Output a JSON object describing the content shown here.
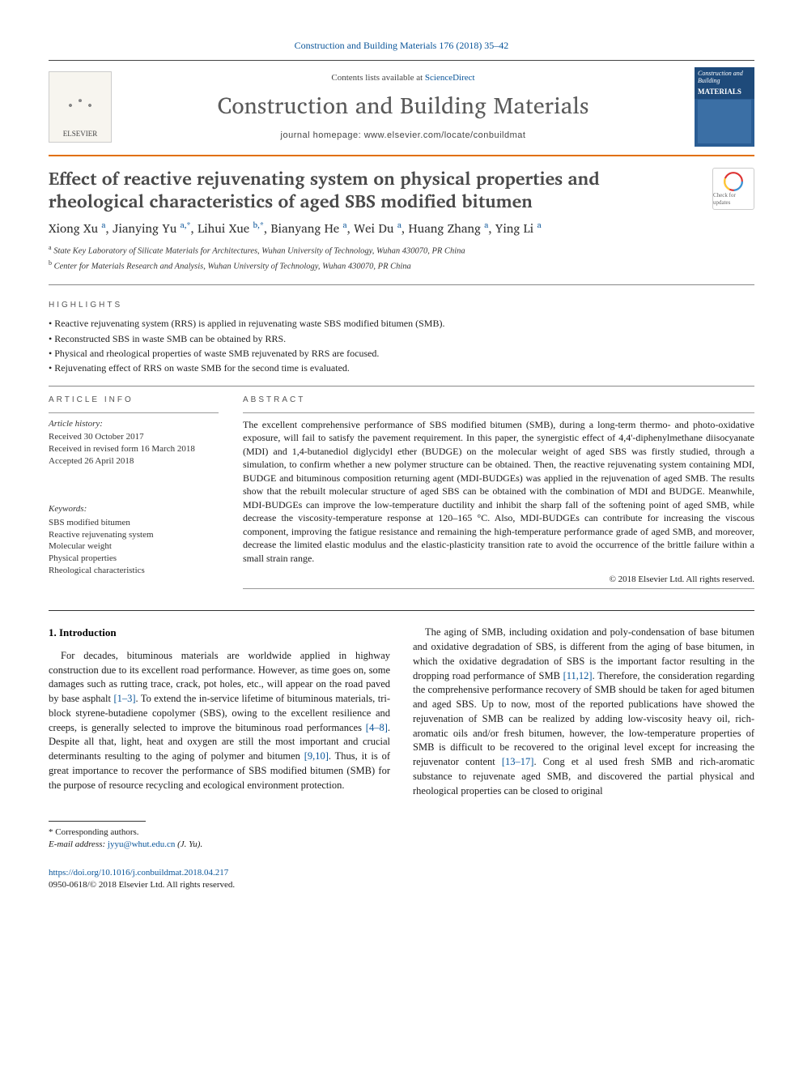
{
  "meta": {
    "citation": "Construction and Building Materials 176 (2018) 35–42",
    "contents_prefix": "Contents lists available at ",
    "contents_link": "ScienceDirect",
    "journal_name": "Construction and Building Materials",
    "homepage_prefix": "journal homepage: ",
    "homepage": "www.elsevier.com/locate/conbuildmat",
    "publisher_name": "ELSEVIER",
    "cover_title_1": "Construction and Building",
    "cover_title_2": "MATERIALS"
  },
  "paper": {
    "title": "Effect of reactive rejuvenating system on physical properties and rheological characteristics of aged SBS modified bitumen",
    "crossmark_label": "Check for updates",
    "authors_html": "Xiong Xu <sup>a</sup>, Jianying Yu <sup>a,*</sup>, Lihui Xue <sup>b,*</sup>, Bianyang He <sup>a</sup>, Wei Du <sup>a</sup>, Huang Zhang <sup>a</sup>, Ying Li <sup>a</sup>",
    "affiliations": [
      {
        "sup": "a",
        "text": "State Key Laboratory of Silicate Materials for Architectures, Wuhan University of Technology, Wuhan 430070, PR China"
      },
      {
        "sup": "b",
        "text": "Center for Materials Research and Analysis, Wuhan University of Technology, Wuhan 430070, PR China"
      }
    ]
  },
  "labels": {
    "highlights": "HIGHLIGHTS",
    "article_info": "ARTICLE INFO",
    "abstract": "ABSTRACT",
    "history": "Article history:",
    "keywords": "Keywords:"
  },
  "highlights": [
    "Reactive rejuvenating system (RRS) is applied in rejuvenating waste SBS modified bitumen (SMB).",
    "Reconstructed SBS in waste SMB can be obtained by RRS.",
    "Physical and rheological properties of waste SMB rejuvenated by RRS are focused.",
    "Rejuvenating effect of RRS on waste SMB for the second time is evaluated."
  ],
  "history": {
    "received": "Received 30 October 2017",
    "revised": "Received in revised form 16 March 2018",
    "accepted": "Accepted 26 April 2018"
  },
  "keywords": [
    "SBS modified bitumen",
    "Reactive rejuvenating system",
    "Molecular weight",
    "Physical properties",
    "Rheological characteristics"
  ],
  "abstract": "The excellent comprehensive performance of SBS modified bitumen (SMB), during a long-term thermo- and photo-oxidative exposure, will fail to satisfy the pavement requirement. In this paper, the synergistic effect of 4,4'-diphenylmethane diisocyanate (MDI) and 1,4-butanediol diglycidyl ether (BUDGE) on the molecular weight of aged SBS was firstly studied, through a simulation, to confirm whether a new polymer structure can be obtained. Then, the reactive rejuvenating system containing MDI, BUDGE and bituminous composition returning agent (MDI-BUDGEs) was applied in the rejuvenation of aged SMB. The results show that the rebuilt molecular structure of aged SBS can be obtained with the combination of MDI and BUDGE. Meanwhile, MDI-BUDGEs can improve the low-temperature ductility and inhibit the sharp fall of the softening point of aged SMB, while decrease the viscosity-temperature response at 120–165 °C. Also, MDI-BUDGEs can contribute for increasing the viscous component, improving the fatigue resistance and remaining the high-temperature performance grade of aged SMB, and moreover, decrease the limited elastic modulus and the elastic-plasticity transition rate to avoid the occurrence of the brittle failure within a small strain range.",
  "abstract_copyright": "© 2018 Elsevier Ltd. All rights reserved.",
  "body": {
    "intro_heading": "1. Introduction",
    "para1_a": "For decades, bituminous materials are worldwide applied in highway construction due to its excellent road performance. However, as time goes on, some damages such as rutting trace, crack, pot holes, etc., will appear on the road paved by base asphalt ",
    "ref1": "[1–3]",
    "para1_b": ". To extend the in-service lifetime of bituminous materials, tri-block styrene-butadiene copolymer (SBS), owing to the excellent resilience and creeps, is generally selected to improve the bituminous road performances ",
    "ref2": "[4–8]",
    "para1_c": ". Despite all that, light, heat and oxygen are still the most important and crucial determinants resulting to the aging of polymer and bitumen ",
    "ref3": "[9,10]",
    "para1_d": ". Thus, it is of great importance to recover the performance of SBS modified bitumen (SMB) for the purpose of resource recycling and ecological environment protection.",
    "para2_a": "The aging of SMB, including oxidation and poly-condensation of base bitumen and oxidative degradation of SBS, is different from the aging of base bitumen, in which the oxidative degradation of SBS is the important factor resulting in the dropping road performance of SMB ",
    "ref4": "[11,12]",
    "para2_b": ". Therefore, the consideration regarding the comprehensive performance recovery of SMB should be taken for aged bitumen and aged SBS. Up to now, most of the reported publications have showed the rejuvenation of SMB can be realized by adding low-viscosity heavy oil, rich-aromatic oils and/or fresh bitumen, however, the low-temperature properties of SMB is difficult to be recovered to the original level except for increasing the rejuvenator content ",
    "ref5": "[13–17]",
    "para2_c": ". Cong et al used fresh SMB and rich-aromatic substance to rejuvenate aged SMB, and discovered the partial physical and rheological properties can be closed to original"
  },
  "footer": {
    "corresp": "* Corresponding authors.",
    "email_label": "E-mail address: ",
    "email": "jyyu@whut.edu.cn",
    "email_who": " (J. Yu).",
    "doi": "https://doi.org/10.1016/j.conbuildmat.2018.04.217",
    "issn_line": "0950-0618/© 2018 Elsevier Ltd. All rights reserved."
  },
  "colors": {
    "link": "#0a5599",
    "rule_accent": "#e17000"
  }
}
